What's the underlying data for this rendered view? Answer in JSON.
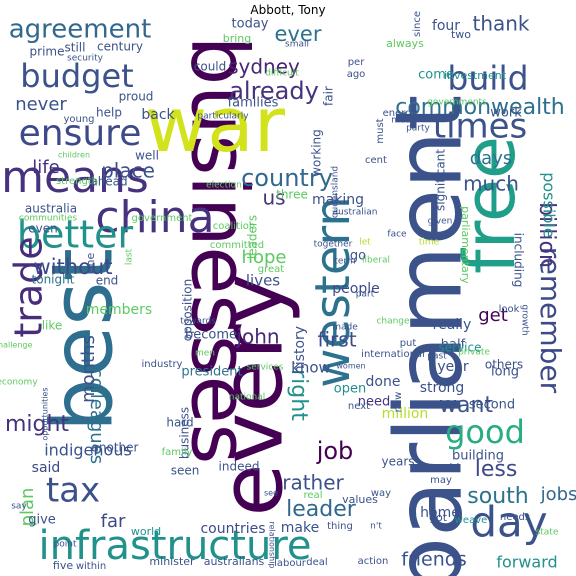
{
  "title": "Abbott, Tony",
  "words": [
    {
      "text": "parliament",
      "color": "#3b528b",
      "rot": -90
    },
    {
      "text": "businesses",
      "color": "#440154",
      "rot": 90
    },
    {
      "text": "every",
      "color": "#440154",
      "rot": -90
    },
    {
      "text": "best",
      "color": "#2e6e8e",
      "rot": -90
    },
    {
      "text": "war",
      "color": "#d2e21b",
      "rot": 0
    },
    {
      "text": "free",
      "color": "#1f9e89",
      "rot": -90
    },
    {
      "text": "infrastructure",
      "color": "#21918c",
      "rot": 0
    },
    {
      "text": "china",
      "color": "#46327e",
      "rot": 0
    },
    {
      "text": "budget",
      "color": "#3b528b",
      "rot": 0
    },
    {
      "text": "better",
      "color": "#21918c",
      "rot": 0
    },
    {
      "text": "ensure",
      "color": "#3e4989",
      "rot": 0
    },
    {
      "text": "means",
      "color": "#46327e",
      "rot": 0
    },
    {
      "text": "times",
      "color": "#3b528b",
      "rot": 0
    },
    {
      "text": "build",
      "color": "#3b528b",
      "rot": 0
    },
    {
      "text": "day",
      "color": "#3b528b",
      "rot": 0
    },
    {
      "text": "tax",
      "color": "#3b528b",
      "rot": 0
    },
    {
      "text": "trade",
      "color": "#472d7b",
      "rot": -90
    },
    {
      "text": "western",
      "color": "#2c728e",
      "rot": -90
    },
    {
      "text": "good",
      "color": "#27ad81",
      "rot": 0
    },
    {
      "text": "agreement",
      "color": "#31688e",
      "rot": 0
    },
    {
      "text": "remember",
      "color": "#3e4989",
      "rot": 90
    },
    {
      "text": "already",
      "color": "#46327e",
      "rot": 0
    },
    {
      "text": "country",
      "color": "#31688e",
      "rot": 0
    },
    {
      "text": "commonwealth",
      "color": "#2e6e8e",
      "rot": 0
    },
    {
      "text": "billion",
      "color": "#46327e",
      "rot": 90
    },
    {
      "text": "sydney",
      "color": "#482475",
      "rot": 0
    },
    {
      "text": "ever",
      "color": "#2c728e",
      "rot": 0
    },
    {
      "text": "job",
      "color": "#440154",
      "rot": 0
    },
    {
      "text": "might",
      "color": "#46327e",
      "rot": 0
    },
    {
      "text": "without",
      "color": "#3e4989",
      "rot": 0
    },
    {
      "text": "right",
      "color": "#21918c",
      "rot": 90
    },
    {
      "text": "colleagues",
      "color": "#2c728e",
      "rot": 90
    },
    {
      "text": "less",
      "color": "#3e4989",
      "rot": 0
    },
    {
      "text": "south",
      "color": "#2c728e",
      "rot": 0
    },
    {
      "text": "months",
      "color": "#3b528b",
      "rot": -90
    },
    {
      "text": "place",
      "color": "#3b528b",
      "rot": 0
    },
    {
      "text": "leader",
      "color": "#31688e",
      "rot": 0
    },
    {
      "text": "rather",
      "color": "#3b528b",
      "rot": 0
    },
    {
      "text": "want",
      "color": "#3b528b",
      "rot": 0
    },
    {
      "text": "friends",
      "color": "#3b528b",
      "rot": 0
    },
    {
      "text": "us",
      "color": "#46327e",
      "rot": 0
    },
    {
      "text": "john",
      "color": "#482878",
      "rot": 0
    },
    {
      "text": "first",
      "color": "#3e4989",
      "rot": 0
    },
    {
      "text": "much",
      "color": "#3b528b",
      "rot": 0
    },
    {
      "text": "days",
      "color": "#2c728e",
      "rot": 0
    },
    {
      "text": "possible",
      "color": "#21918c",
      "rot": 90
    },
    {
      "text": "plan",
      "color": "#5ec962",
      "rot": -90
    },
    {
      "text": "far",
      "color": "#3e4989",
      "rot": 0
    },
    {
      "text": "jobs",
      "color": "#31688e",
      "rot": 0
    },
    {
      "text": "life",
      "color": "#46327e",
      "rot": 0
    },
    {
      "text": "thank",
      "color": "#3b528b",
      "rot": 0
    },
    {
      "text": "never",
      "color": "#3b528b",
      "rot": 0
    },
    {
      "text": "hope",
      "color": "#5ec962",
      "rot": 0
    },
    {
      "text": "history",
      "color": "#3b528b",
      "rot": -90
    },
    {
      "text": "know",
      "color": "#3b528b",
      "rot": 0
    },
    {
      "text": "indigenous",
      "color": "#3b528b",
      "rot": 0
    },
    {
      "text": "tonight",
      "color": "#2c728e",
      "rot": 0
    },
    {
      "text": "forward",
      "color": "#21918c",
      "rot": 0
    },
    {
      "text": "lives",
      "color": "#3b528b",
      "rot": 0
    },
    {
      "text": "people",
      "color": "#3e4989",
      "rot": 0
    },
    {
      "text": "countries",
      "color": "#3e4989",
      "rot": 0
    },
    {
      "text": "make",
      "color": "#3b528b",
      "rot": 0
    },
    {
      "text": "said",
      "color": "#3e4989",
      "rot": 0
    },
    {
      "text": "year",
      "color": "#3b528b",
      "rot": 0
    },
    {
      "text": "really",
      "color": "#3b528b",
      "rot": 0
    },
    {
      "text": "million",
      "color": "#b5de2b",
      "rot": 0
    },
    {
      "text": "second",
      "color": "#3b528b",
      "rot": 0
    },
    {
      "text": "done",
      "color": "#3b528b",
      "rot": 0
    },
    {
      "text": "strong",
      "color": "#3b528b",
      "rot": 0
    },
    {
      "text": "get",
      "color": "#440154",
      "rot": 0
    },
    {
      "text": "open",
      "color": "#21918c",
      "rot": 0
    },
    {
      "text": "need",
      "color": "#46327e",
      "rot": 0
    },
    {
      "text": "home",
      "color": "#3b528b",
      "rot": 0
    },
    {
      "text": "give",
      "color": "#3b528b",
      "rot": 0
    },
    {
      "text": "members",
      "color": "#5ec962",
      "rot": 0
    },
    {
      "text": "become",
      "color": "#3b528b",
      "rot": 0
    },
    {
      "text": "president",
      "color": "#2c728e",
      "rot": 0
    },
    {
      "text": "making",
      "color": "#3b528b",
      "rot": 0
    },
    {
      "text": "three",
      "color": "#5ec962",
      "rot": 0
    },
    {
      "text": "work",
      "color": "#3b528b",
      "rot": 0
    },
    {
      "text": "come",
      "color": "#21918c",
      "rot": 0
    },
    {
      "text": "four",
      "color": "#3b528b",
      "rot": 0
    },
    {
      "text": "still",
      "color": "#3b528b",
      "rot": 0
    },
    {
      "text": "ahead",
      "color": "#3b528b",
      "rot": 0
    },
    {
      "text": "help",
      "color": "#3b528b",
      "rot": 0
    },
    {
      "text": "back",
      "color": "#3b528b",
      "rot": 0
    },
    {
      "text": "families",
      "color": "#3b528b",
      "rot": 0
    },
    {
      "text": "today",
      "color": "#3b528b",
      "rot": 0
    },
    {
      "text": "like",
      "color": "#5ec962",
      "rot": 0
    },
    {
      "text": "half",
      "color": "#3b528b",
      "rot": 0
    },
    {
      "text": "go",
      "color": "#3b528b",
      "rot": 0
    },
    {
      "text": "long",
      "color": "#3b528b",
      "rot": 0
    },
    {
      "text": "others",
      "color": "#3b528b",
      "rot": 0
    },
    {
      "text": "service",
      "color": "#21918c",
      "rot": 0
    },
    {
      "text": "building",
      "color": "#3b528b",
      "rot": 0
    },
    {
      "text": "hard",
      "color": "#3b528b",
      "rot": 0
    },
    {
      "text": "including",
      "color": "#3b528b",
      "rot": 90
    },
    {
      "text": "parliamentary",
      "color": "#5ec962",
      "rot": 90
    },
    {
      "text": "opposition",
      "color": "#3b528b",
      "rot": -90
    },
    {
      "text": "business",
      "color": "#3b528b",
      "rot": -90
    },
    {
      "text": "leaders",
      "color": "#5ec962",
      "rot": -90
    },
    {
      "text": "working",
      "color": "#3b528b",
      "rot": -90
    },
    {
      "text": "significant",
      "color": "#3b528b",
      "rot": -90
    },
    {
      "text": "fair",
      "color": "#3b528b",
      "rot": -90
    },
    {
      "text": "prime",
      "color": "#3b528b",
      "rot": 0
    },
    {
      "text": "century",
      "color": "#3b528b",
      "rot": 0
    },
    {
      "text": "proud",
      "color": "#3b528b",
      "rot": 0
    },
    {
      "text": "bring",
      "color": "#5ec962",
      "rot": 0
    },
    {
      "text": "could",
      "color": "#3b528b",
      "rot": 0
    },
    {
      "text": "investment",
      "color": "#21918c",
      "rot": 0
    },
    {
      "text": "australia",
      "color": "#3b528b",
      "rot": 0
    },
    {
      "text": "well",
      "color": "#3b528b",
      "rot": 0
    },
    {
      "text": "even",
      "color": "#3b528b",
      "rot": 0
    },
    {
      "text": "end",
      "color": "#3b528b",
      "rot": 0
    },
    {
      "text": "one",
      "color": "#3b528b",
      "rot": -90
    },
    {
      "text": "years",
      "color": "#3b528b",
      "rot": 0
    },
    {
      "text": "indeed",
      "color": "#3b528b",
      "rot": 0
    },
    {
      "text": "another",
      "color": "#3b528b",
      "rot": 0
    },
    {
      "text": "seen",
      "color": "#3b528b",
      "rot": 0
    },
    {
      "text": "world",
      "color": "#21918c",
      "rot": 0
    },
    {
      "text": "australians",
      "color": "#3b528b",
      "rot": 0
    },
    {
      "text": "minister",
      "color": "#3b528b",
      "rot": 0
    },
    {
      "text": "five",
      "color": "#3b528b",
      "rot": 0
    },
    {
      "text": "within",
      "color": "#3b528b",
      "rot": 0
    },
    {
      "text": "labour",
      "color": "#3b528b",
      "rot": 0
    },
    {
      "text": "deal",
      "color": "#3b528b",
      "rot": 0
    },
    {
      "text": "action",
      "color": "#3b528b",
      "rot": 0
    },
    {
      "text": "thing",
      "color": "#3b528b",
      "rot": 0
    },
    {
      "text": "values",
      "color": "#3b528b",
      "rot": 0
    },
    {
      "text": "real",
      "color": "#5ec962",
      "rot": 0
    },
    {
      "text": "got",
      "color": "#3b528b",
      "rot": 0
    },
    {
      "text": "weave",
      "color": "#21918c",
      "rot": 0
    },
    {
      "text": "needs",
      "color": "#3b528b",
      "rot": 0
    },
    {
      "text": "way",
      "color": "#3b528b",
      "rot": 0
    },
    {
      "text": "would",
      "color": "#3b528b",
      "rot": 0
    },
    {
      "text": "may",
      "color": "#3b528b",
      "rot": 0
    },
    {
      "text": "new",
      "color": "#3b528b",
      "rot": -90
    },
    {
      "text": "next",
      "color": "#3b528b",
      "rot": 0
    },
    {
      "text": "look",
      "color": "#3b528b",
      "rot": 0
    },
    {
      "text": "growth",
      "color": "#3b528b",
      "rot": 90
    },
    {
      "text": "put",
      "color": "#3b528b",
      "rot": 0
    },
    {
      "text": "two",
      "color": "#3b528b",
      "rot": 0
    },
    {
      "text": "since",
      "color": "#3b528b",
      "rot": -90
    },
    {
      "text": "always",
      "color": "#5ec962",
      "rot": 0
    },
    {
      "text": "per",
      "color": "#3b528b",
      "rot": 0
    },
    {
      "text": "ago",
      "color": "#3b528b",
      "rot": 0
    },
    {
      "text": "small",
      "color": "#3b528b",
      "rot": 0
    },
    {
      "text": "difficult",
      "color": "#5ec962",
      "rot": 0
    },
    {
      "text": "security",
      "color": "#3b528b",
      "rot": 0
    },
    {
      "text": "young",
      "color": "#3b528b",
      "rot": 0
    },
    {
      "text": "particularly",
      "color": "#3b528b",
      "rot": 0
    },
    {
      "text": "children",
      "color": "#5ec962",
      "rot": 0
    },
    {
      "text": "strength",
      "color": "#5ec962",
      "rot": 0
    },
    {
      "text": "communities",
      "color": "#5ec962",
      "rot": 0
    },
    {
      "text": "government",
      "color": "#5ec962",
      "rot": 0
    },
    {
      "text": "coalition",
      "color": "#5ec962",
      "rot": 0
    },
    {
      "text": "election",
      "color": "#5ec962",
      "rot": 0
    },
    {
      "text": "must",
      "color": "#3b528b",
      "rot": -90
    },
    {
      "text": "mean",
      "color": "#3b528b",
      "rot": 0
    },
    {
      "text": "cent",
      "color": "#3b528b",
      "rot": 0
    },
    {
      "text": "party",
      "color": "#3b528b",
      "rot": 0
    },
    {
      "text": "energy",
      "color": "#3b528b",
      "rot": 0
    },
    {
      "text": "governments",
      "color": "#5ec962",
      "rot": 0
    },
    {
      "text": "australian",
      "color": "#3b528b",
      "rot": 0
    },
    {
      "text": "given",
      "color": "#3b528b",
      "rot": 0
    },
    {
      "text": "face",
      "color": "#3b528b",
      "rot": 0
    },
    {
      "text": "time",
      "color": "#b5de2b",
      "rot": 0
    },
    {
      "text": "let",
      "color": "#b5de2b",
      "rot": 0
    },
    {
      "text": "together",
      "color": "#3b528b",
      "rot": 0
    },
    {
      "text": "committed",
      "color": "#5ec962",
      "rot": 0
    },
    {
      "text": "term",
      "color": "#3b528b",
      "rot": 0
    },
    {
      "text": "liberal",
      "color": "#5ec962",
      "rot": 0
    },
    {
      "text": "great",
      "color": "#5ec962",
      "rot": 0
    },
    {
      "text": "part",
      "color": "#3b528b",
      "rot": 0
    },
    {
      "text": "change",
      "color": "#5ec962",
      "rot": 0
    },
    {
      "text": "made",
      "color": "#3b528b",
      "rot": 0
    },
    {
      "text": "international",
      "color": "#3b528b",
      "rot": 0
    },
    {
      "text": "past",
      "color": "#3b528b",
      "rot": 0
    },
    {
      "text": "private",
      "color": "#5ec962",
      "rot": 0
    },
    {
      "text": "queensland",
      "color": "#3b528b",
      "rot": -90
    },
    {
      "text": "towards",
      "color": "#3b528b",
      "rot": 0
    },
    {
      "text": "men",
      "color": "#5ec962",
      "rot": 0
    },
    {
      "text": "industry",
      "color": "#3b528b",
      "rot": 0
    },
    {
      "text": "services",
      "color": "#5ec962",
      "rot": 0
    },
    {
      "text": "women",
      "color": "#3b528b",
      "rot": 0
    },
    {
      "text": "national",
      "color": "#5ec962",
      "rot": 0
    },
    {
      "text": "challenge",
      "color": "#5ec962",
      "rot": 0
    },
    {
      "text": "opportunities",
      "color": "#3b528b",
      "rot": -90
    },
    {
      "text": "economy",
      "color": "#5ec962",
      "rot": 0
    },
    {
      "text": "say",
      "color": "#3b528b",
      "rot": 0
    },
    {
      "text": "family",
      "color": "#5ec962",
      "rot": 0
    },
    {
      "text": "see",
      "color": "#3b528b",
      "rot": 0
    },
    {
      "text": "point",
      "color": "#3b528b",
      "rot": 0
    },
    {
      "text": "n't",
      "color": "#3b528b",
      "rot": 0
    },
    {
      "text": "state",
      "color": "#5ec962",
      "rot": 0
    },
    {
      "text": "relationship",
      "color": "#3b528b",
      "rot": 90
    },
    {
      "text": "last",
      "color": "#5ec962",
      "rot": -90
    },
    {
      "text": "many",
      "color": "#5ec962",
      "rot": 0
    }
  ]
}
